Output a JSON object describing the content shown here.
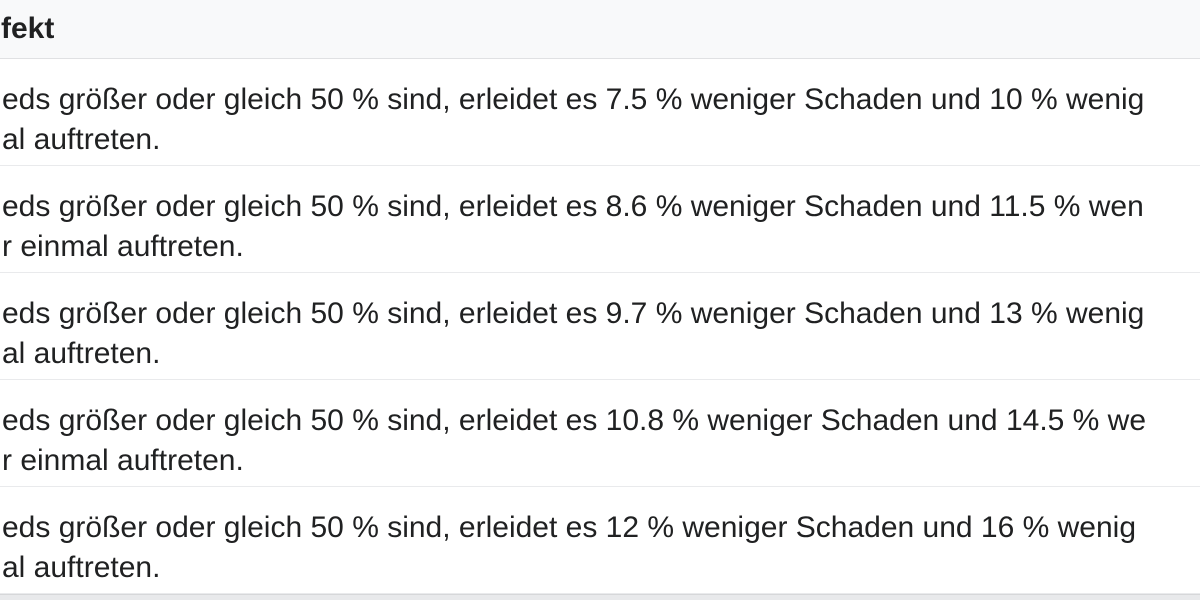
{
  "table": {
    "header_label": "fekt",
    "rows": [
      {
        "line1": "eds größer oder gleich 50 % sind, erleidet es 7.5 % weniger Schaden und 10 % wenig",
        "line2": "al auftreten."
      },
      {
        "line1": "eds größer oder gleich 50 % sind, erleidet es 8.6 % weniger Schaden und 11.5 % wen",
        "line2": "r einmal auftreten."
      },
      {
        "line1": "eds größer oder gleich 50 % sind, erleidet es 9.7 % weniger Schaden und 13 % wenig",
        "line2": "al auftreten."
      },
      {
        "line1": "eds größer oder gleich 50 % sind, erleidet es 10.8 % weniger Schaden und 14.5 % we",
        "line2": "r einmal auftreten."
      },
      {
        "line1": "eds größer oder gleich 50 % sind, erleidet es 12 % weniger Schaden und 16 % wenig",
        "line2": "al auftreten."
      }
    ]
  },
  "colors": {
    "header_bg": "#f8f9fa",
    "text": "#202122",
    "row_separator": "#e9eaec",
    "bottom_strip_bg": "#e8e9eb"
  }
}
